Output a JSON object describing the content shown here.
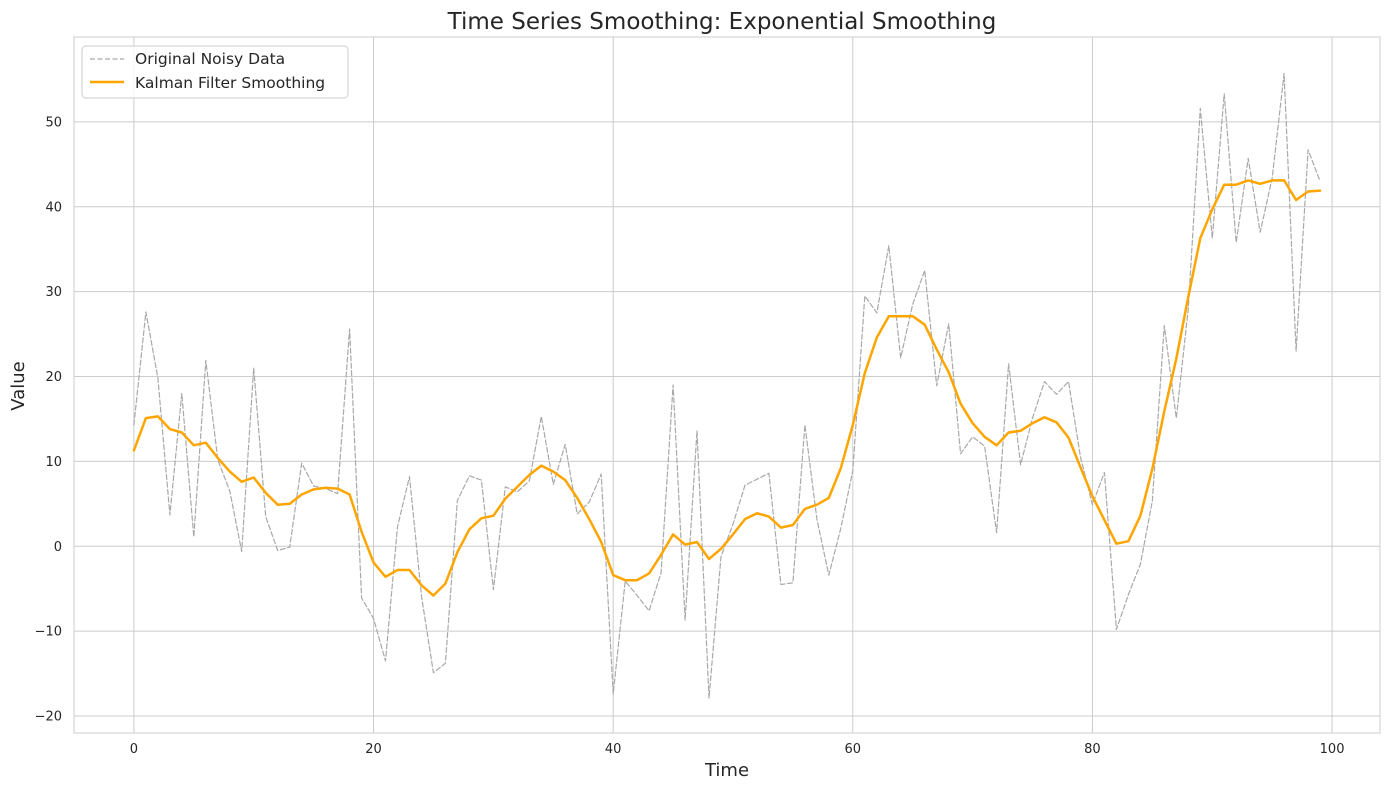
{
  "chart_data": {
    "type": "line",
    "title": "Time Series Smoothing: Exponential Smoothing",
    "xlabel": "Time",
    "ylabel": "Value",
    "xlim": [
      -5,
      104
    ],
    "ylim": [
      -22,
      60
    ],
    "xticks": [
      0,
      20,
      40,
      60,
      80,
      100
    ],
    "yticks": [
      -20,
      -10,
      0,
      10,
      20,
      30,
      40,
      50
    ],
    "xtick_labels": [
      "0",
      "20",
      "40",
      "60",
      "80",
      "100"
    ],
    "ytick_labels": [
      "−20",
      "−10",
      "0",
      "10",
      "20",
      "30",
      "40",
      "50"
    ],
    "grid": true,
    "legend_position": "top-left",
    "series": [
      {
        "name": "Original Noisy Data",
        "color": "#a9a9a9",
        "line_style": "dashed",
        "x": [
          0,
          1,
          2,
          3,
          4,
          5,
          6,
          7,
          8,
          9,
          10,
          11,
          12,
          13,
          14,
          15,
          16,
          17,
          18,
          19,
          20,
          21,
          22,
          23,
          24,
          25,
          26,
          27,
          28,
          29,
          30,
          31,
          32,
          33,
          34,
          35,
          36,
          37,
          38,
          39,
          40,
          41,
          42,
          43,
          44,
          45,
          46,
          47,
          48,
          49,
          50,
          51,
          52,
          53,
          54,
          55,
          56,
          57,
          58,
          59,
          60,
          61,
          62,
          63,
          64,
          65,
          66,
          67,
          68,
          69,
          70,
          71,
          72,
          73,
          74,
          75,
          76,
          77,
          78,
          79,
          80,
          81,
          82,
          83,
          84,
          85,
          86,
          87,
          88,
          89,
          90,
          91,
          92,
          93,
          94,
          95,
          96,
          97,
          98,
          99
        ],
        "values": [
          14.3,
          27.6,
          19.8,
          3.7,
          18.0,
          1.1,
          21.9,
          10.2,
          6.5,
          -0.6,
          21.0,
          3.5,
          -0.5,
          -0.1,
          9.8,
          7.1,
          6.8,
          6.2,
          25.6,
          -6.1,
          -8.5,
          -13.5,
          2.3,
          8.2,
          -5.9,
          -14.9,
          -13.8,
          5.4,
          8.3,
          7.8,
          -5.1,
          7.0,
          6.4,
          7.7,
          15.3,
          7.3,
          12.0,
          3.8,
          5.2,
          8.5,
          -17.4,
          -4.1,
          -5.8,
          -7.6,
          -3.1,
          19.0,
          -8.7,
          13.6,
          -17.9,
          -1.2,
          2.6,
          7.2,
          7.9,
          8.6,
          -4.5,
          -4.3,
          14.3,
          3.2,
          -3.4,
          2.1,
          8.9,
          29.5,
          27.5,
          35.4,
          22.2,
          28.5,
          32.5,
          18.9,
          26.2,
          10.9,
          12.9,
          11.8,
          1.6,
          21.5,
          9.6,
          15.1,
          19.4,
          17.9,
          19.4,
          10.5,
          4.9,
          8.7,
          -9.8,
          -5.7,
          -2.1,
          5.3,
          26.0,
          15.1,
          28.0,
          51.6,
          36.3,
          53.3,
          35.8,
          45.7,
          37.0,
          43.4,
          55.7,
          23.0,
          46.7,
          43.0
        ]
      },
      {
        "name": "Kalman Filter Smoothing",
        "color": "#ffa500",
        "line_style": "solid",
        "x": [
          0,
          1,
          2,
          3,
          4,
          5,
          6,
          7,
          8,
          9,
          10,
          11,
          12,
          13,
          14,
          15,
          16,
          17,
          18,
          19,
          20,
          21,
          22,
          23,
          24,
          25,
          26,
          27,
          28,
          29,
          30,
          31,
          32,
          33,
          34,
          35,
          36,
          37,
          38,
          39,
          40,
          41,
          42,
          43,
          44,
          45,
          46,
          47,
          48,
          49,
          50,
          51,
          52,
          53,
          54,
          55,
          56,
          57,
          58,
          59,
          60,
          61,
          62,
          63,
          64,
          65,
          66,
          67,
          68,
          69,
          70,
          71,
          72,
          73,
          74,
          75,
          76,
          77,
          78,
          79,
          80,
          81,
          82,
          83,
          84,
          85,
          86,
          87,
          88,
          89,
          90,
          91,
          92,
          93,
          94,
          95,
          96,
          97,
          98,
          99
        ],
        "values": [
          11.3,
          15.1,
          15.3,
          13.8,
          13.4,
          11.9,
          12.2,
          10.4,
          8.8,
          7.6,
          8.1,
          6.3,
          4.9,
          5.0,
          6.1,
          6.7,
          6.9,
          6.8,
          6.1,
          1.7,
          -1.9,
          -3.6,
          -2.8,
          -2.8,
          -4.6,
          -5.8,
          -4.4,
          -0.7,
          2.0,
          3.3,
          3.6,
          5.6,
          7.0,
          8.4,
          9.5,
          8.8,
          7.8,
          5.7,
          3.2,
          0.5,
          -3.4,
          -4.0,
          -4.0,
          -3.2,
          -1.0,
          1.4,
          0.2,
          0.5,
          -1.5,
          -0.3,
          1.4,
          3.2,
          3.9,
          3.5,
          2.2,
          2.5,
          4.4,
          4.9,
          5.7,
          9.2,
          14.3,
          20.4,
          24.6,
          27.1,
          27.1,
          27.1,
          26.1,
          23.2,
          20.5,
          16.8,
          14.5,
          12.9,
          11.9,
          13.4,
          13.6,
          14.5,
          15.2,
          14.6,
          12.8,
          9.3,
          5.9,
          3.1,
          0.3,
          0.6,
          3.6,
          9.1,
          15.9,
          22.1,
          29.4,
          36.3,
          39.7,
          42.6,
          42.6,
          43.1,
          42.7,
          43.1,
          43.1,
          40.8,
          41.8,
          41.9
        ]
      }
    ]
  }
}
